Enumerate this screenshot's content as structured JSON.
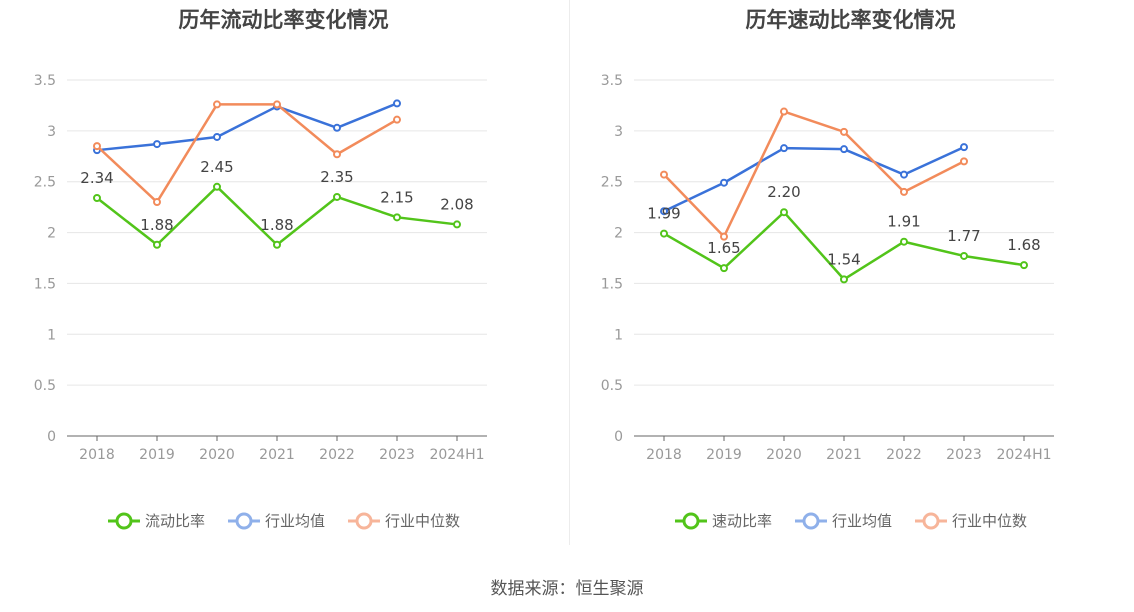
{
  "source": "数据来源：恒生聚源",
  "colors": {
    "company": "#52c41a",
    "industry_avg": "#3a72d9",
    "industry_median": "#f28b5b",
    "grid": "#e6e6e6",
    "axis": "#666666"
  },
  "chart_data": [
    {
      "type": "line",
      "title": "历年流动比率变化情况",
      "categories": [
        "2018",
        "2019",
        "2020",
        "2021",
        "2022",
        "2023",
        "2024H1"
      ],
      "ylim": [
        0,
        3.5
      ],
      "yticks": [
        "0",
        "0.5",
        "1",
        "1.5",
        "2",
        "2.5",
        "3",
        "3.5"
      ],
      "grid": true,
      "legend_position": "bottom",
      "series": [
        {
          "name": "流动比率",
          "color": "#52c41a",
          "values": [
            2.34,
            1.88,
            2.45,
            1.88,
            2.35,
            2.15,
            2.08
          ],
          "labels": [
            "2.34",
            "1.88",
            "2.45",
            "1.88",
            "2.35",
            "2.15",
            "2.08"
          ]
        },
        {
          "name": "行业均值",
          "color": "#3a72d9",
          "values": [
            2.81,
            2.87,
            2.94,
            3.24,
            3.03,
            3.27,
            null
          ]
        },
        {
          "name": "行业中位数",
          "color": "#f28b5b",
          "values": [
            2.85,
            2.3,
            3.26,
            3.26,
            2.77,
            3.11,
            null
          ]
        }
      ]
    },
    {
      "type": "line",
      "title": "历年速动比率变化情况",
      "categories": [
        "2018",
        "2019",
        "2020",
        "2021",
        "2022",
        "2023",
        "2024H1"
      ],
      "ylim": [
        0,
        3.5
      ],
      "yticks": [
        "0",
        "0.5",
        "1",
        "1.5",
        "2",
        "2.5",
        "3",
        "3.5"
      ],
      "grid": true,
      "legend_position": "bottom",
      "series": [
        {
          "name": "速动比率",
          "color": "#52c41a",
          "values": [
            1.99,
            1.65,
            2.2,
            1.54,
            1.91,
            1.77,
            1.68
          ],
          "labels": [
            "1.99",
            "1.65",
            "2.20",
            "1.54",
            "1.91",
            "1.77",
            "1.68"
          ]
        },
        {
          "name": "行业均值",
          "color": "#3a72d9",
          "values": [
            2.21,
            2.49,
            2.83,
            2.82,
            2.57,
            2.84,
            null
          ]
        },
        {
          "name": "行业中位数",
          "color": "#f28b5b",
          "values": [
            2.57,
            1.96,
            3.19,
            2.99,
            2.4,
            2.7,
            null
          ]
        }
      ]
    }
  ]
}
